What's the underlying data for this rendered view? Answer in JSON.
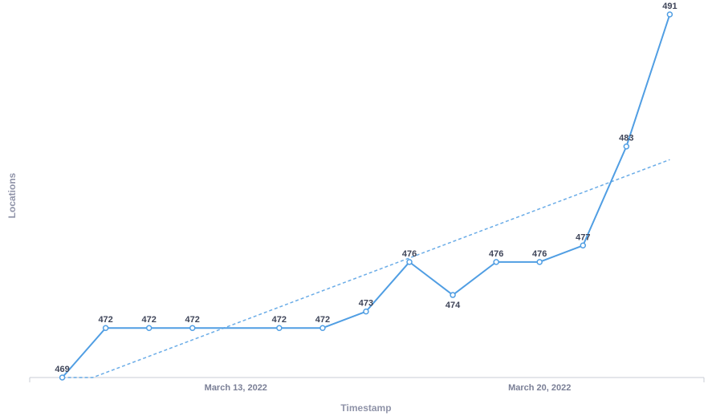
{
  "chart_data": {
    "type": "line",
    "title": "",
    "xlabel": "Timestamp",
    "ylabel": "Locations",
    "x_tick_labels": [
      {
        "date": "2022-03-13",
        "label": "March 13, 2022"
      },
      {
        "date": "2022-03-20",
        "label": "March 20, 2022"
      }
    ],
    "x_range": [
      "2022-03-08",
      "2022-03-24"
    ],
    "ylim": [
      469,
      491
    ],
    "grid": false,
    "legend": "none",
    "series": [
      {
        "points": [
          {
            "x": "2022-03-09",
            "y": 469
          },
          {
            "x": "2022-03-10",
            "y": 472
          },
          {
            "x": "2022-03-11",
            "y": 472
          },
          {
            "x": "2022-03-12",
            "y": 472
          },
          {
            "x": "2022-03-14",
            "y": 472
          },
          {
            "x": "2022-03-15",
            "y": 472
          },
          {
            "x": "2022-03-16",
            "y": 473
          },
          {
            "x": "2022-03-17",
            "y": 476
          },
          {
            "x": "2022-03-18",
            "y": 474
          },
          {
            "x": "2022-03-19",
            "y": 476
          },
          {
            "x": "2022-03-20",
            "y": 476
          },
          {
            "x": "2022-03-21",
            "y": 477
          },
          {
            "x": "2022-03-22",
            "y": 483
          },
          {
            "x": "2022-03-23",
            "y": 491
          }
        ]
      }
    ],
    "trend_line": {
      "start": {
        "x": "2022-03-09",
        "y": 469
      },
      "end": {
        "x": "2022-03-23",
        "y": 482.2
      }
    },
    "colors": {
      "line": "#509ee3",
      "trend": "#509ee3",
      "axis": "#c9ccd6",
      "label": "#3f4559",
      "axis_title": "#8f93a8"
    }
  }
}
